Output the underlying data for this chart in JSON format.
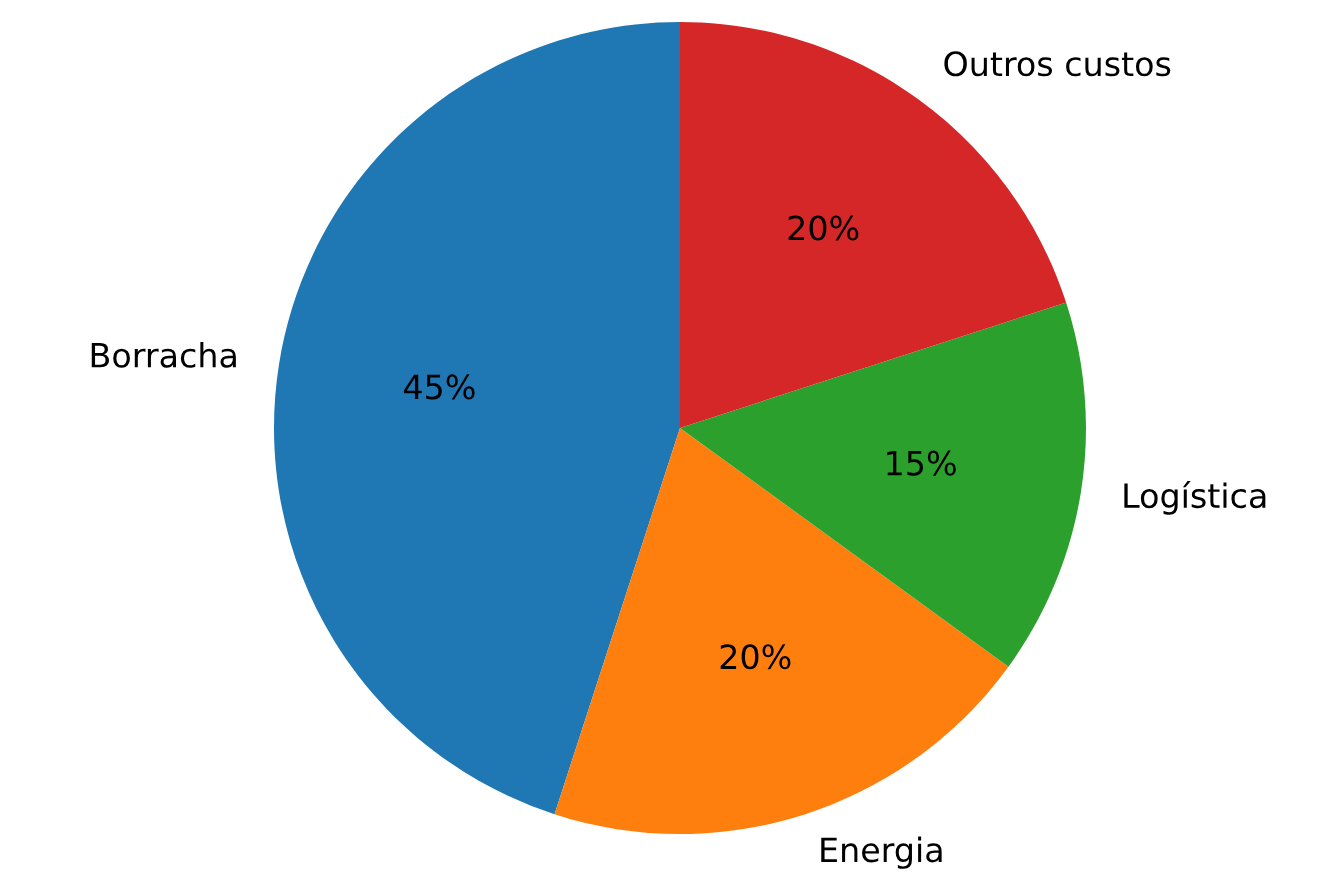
{
  "chart_data": {
    "type": "pie",
    "categories": [
      "Borracha",
      "Energia",
      "Logística",
      "Outros custos"
    ],
    "values": [
      45,
      20,
      15,
      20
    ],
    "colors": [
      "#1f77b4",
      "#ff7f0e",
      "#2ca02c",
      "#d62728"
    ],
    "value_labels": [
      "45%",
      "20%",
      "15%",
      "20%"
    ]
  }
}
